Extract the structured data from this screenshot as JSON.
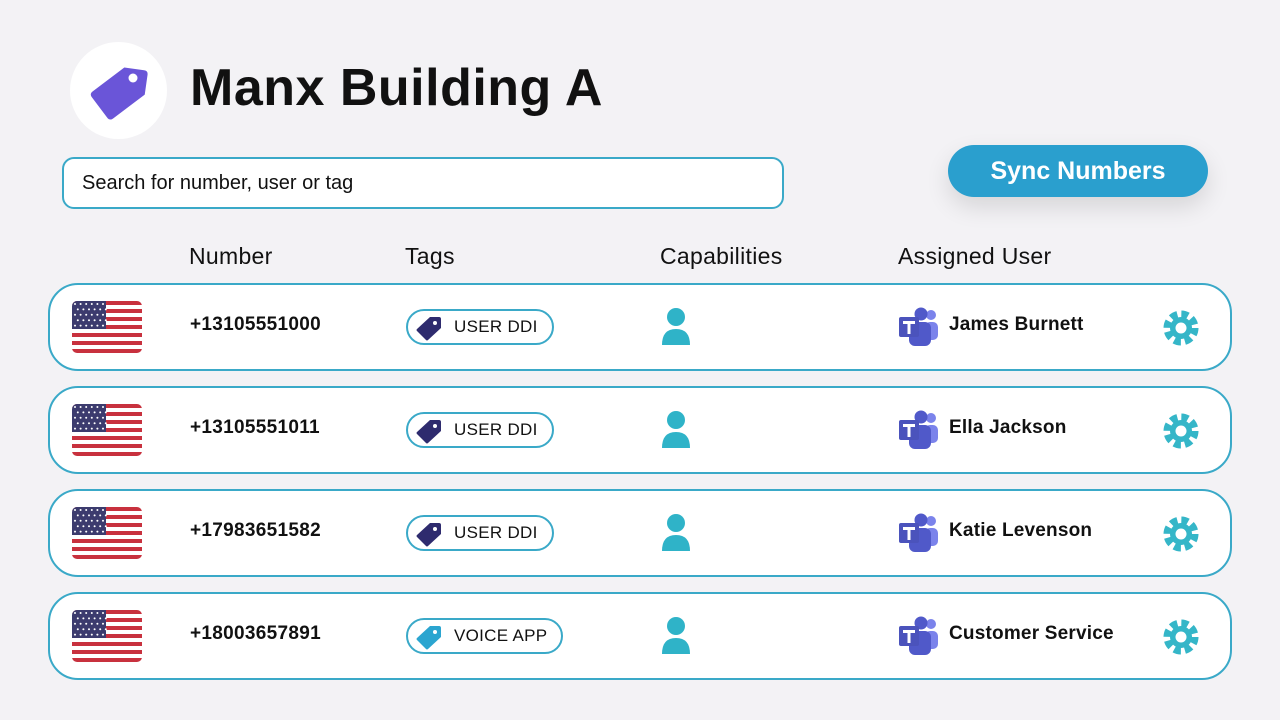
{
  "header": {
    "title": "Manx Building A"
  },
  "search": {
    "placeholder": "Search for number, user or tag"
  },
  "sync_button": "Sync Numbers",
  "columns": [
    "Number",
    "Tags",
    "Capabilities",
    "Assigned User"
  ],
  "rows": [
    {
      "number": "+13105551000",
      "tag": "USER DDI",
      "tag_color": "#2e2b6e",
      "user": "James Burnett"
    },
    {
      "number": "+13105551011",
      "tag": "USER DDI",
      "tag_color": "#2e2b6e",
      "user": "Ella Jackson"
    },
    {
      "number": "+17983651582",
      "tag": "USER DDI",
      "tag_color": "#2e2b6e",
      "user": "Katie Levenson"
    },
    {
      "number": "+18003657891",
      "tag": "VOICE APP",
      "tag_color": "#2ba5d0",
      "user": "Customer Service"
    }
  ]
}
